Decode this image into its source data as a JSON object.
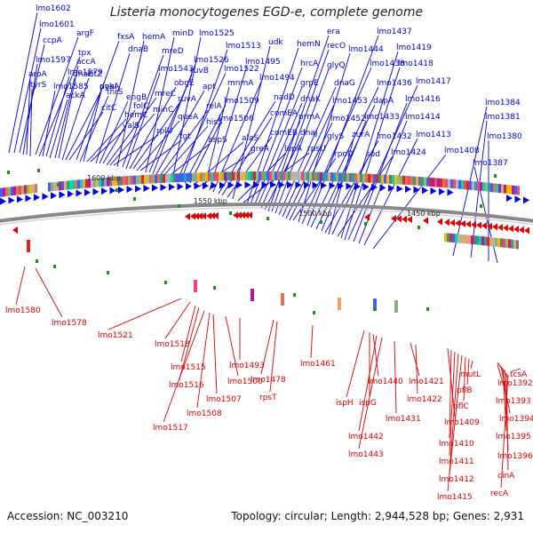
{
  "title": "Listeria monocytogenes EGD-e, complete genome",
  "footer": {
    "accession": "Accession: NC_003210",
    "summary": "Topology: circular; Length: 2,944,528 bp; Genes: 2,931"
  },
  "colors": {
    "forward": "#0000dd",
    "reverse": "#dd0000",
    "backbone": "#888888",
    "rna": "#119911"
  },
  "kbp_labels": [
    "1600 kbp",
    "1550 kbp",
    "1500 kbp",
    "1450 kbp"
  ],
  "forward_labels": [
    "lmo1602",
    "lmo1601",
    "ccpA",
    "lmo1597",
    "aroA",
    "tyrS",
    "argF",
    "tpx",
    "lmo1585",
    "lmo1579",
    "ackA",
    "dnaE",
    "accA",
    "citZ",
    "pykA",
    "citC",
    "fxsA",
    "thrS",
    "dnaI",
    "hemC",
    "valS",
    "dnaB",
    "engB",
    "folC",
    "mreC",
    "minC",
    "rplU",
    "hemA",
    "mreD",
    "lmo1543",
    "obgE",
    "ruvA",
    "queA",
    "tgt",
    "minD",
    "ruvB",
    "lmo1526",
    "apt",
    "relA",
    "hisS",
    "aspS",
    "lmo1525",
    "lmo1522",
    "lmo1513",
    "lmo1509",
    "lmo1506",
    "alaS",
    "greA",
    "mnmA",
    "lmo1495",
    "lmo1494",
    "nadD",
    "comEA",
    "comEB",
    "udk",
    "lepA",
    "rpsU",
    "hemN",
    "hrcA",
    "grpE",
    "dnaK",
    "prmA",
    "dnaJ",
    "era",
    "recO",
    "glyQ",
    "dnaG",
    "lmo1453",
    "lmo1452",
    "glyS",
    "rpoD",
    "lmo1444",
    "lmo1438",
    "lmo1437",
    "lmo1436",
    "dapA",
    "lmo1433",
    "lmo1432",
    "zurA",
    "sod",
    "lmo1424",
    "lmo1419",
    "lmo1418",
    "lmo1417",
    "lmo1416",
    "lmo1414",
    "lmo1413",
    "lmo1408",
    "lmo1384",
    "lmo1381",
    "lmo1380",
    "lmo1387"
  ],
  "reverse_labels": [
    "lmo1580",
    "lmo1578",
    "lmo1521",
    "lmo1518",
    "lmo1515",
    "lmo1516",
    "lmo1517",
    "lmo1508",
    "lmo1507",
    "lmo1500",
    "lmo1493",
    "lmo1478",
    "rpsT",
    "lmo1461",
    "ispH",
    "ispG",
    "lmo1440",
    "lmo1442",
    "lmo1443",
    "lmo1431",
    "lmo1421",
    "lmo1422",
    "lmo1409",
    "lmo1410",
    "lmo1411",
    "lmo1412",
    "lmo1415",
    "pflC",
    "pflB",
    "mutL",
    "lmo1392",
    "lmo1393",
    "lmo1394",
    "lmo1395",
    "lmo1396",
    "tcsA",
    "cinA",
    "recA"
  ]
}
